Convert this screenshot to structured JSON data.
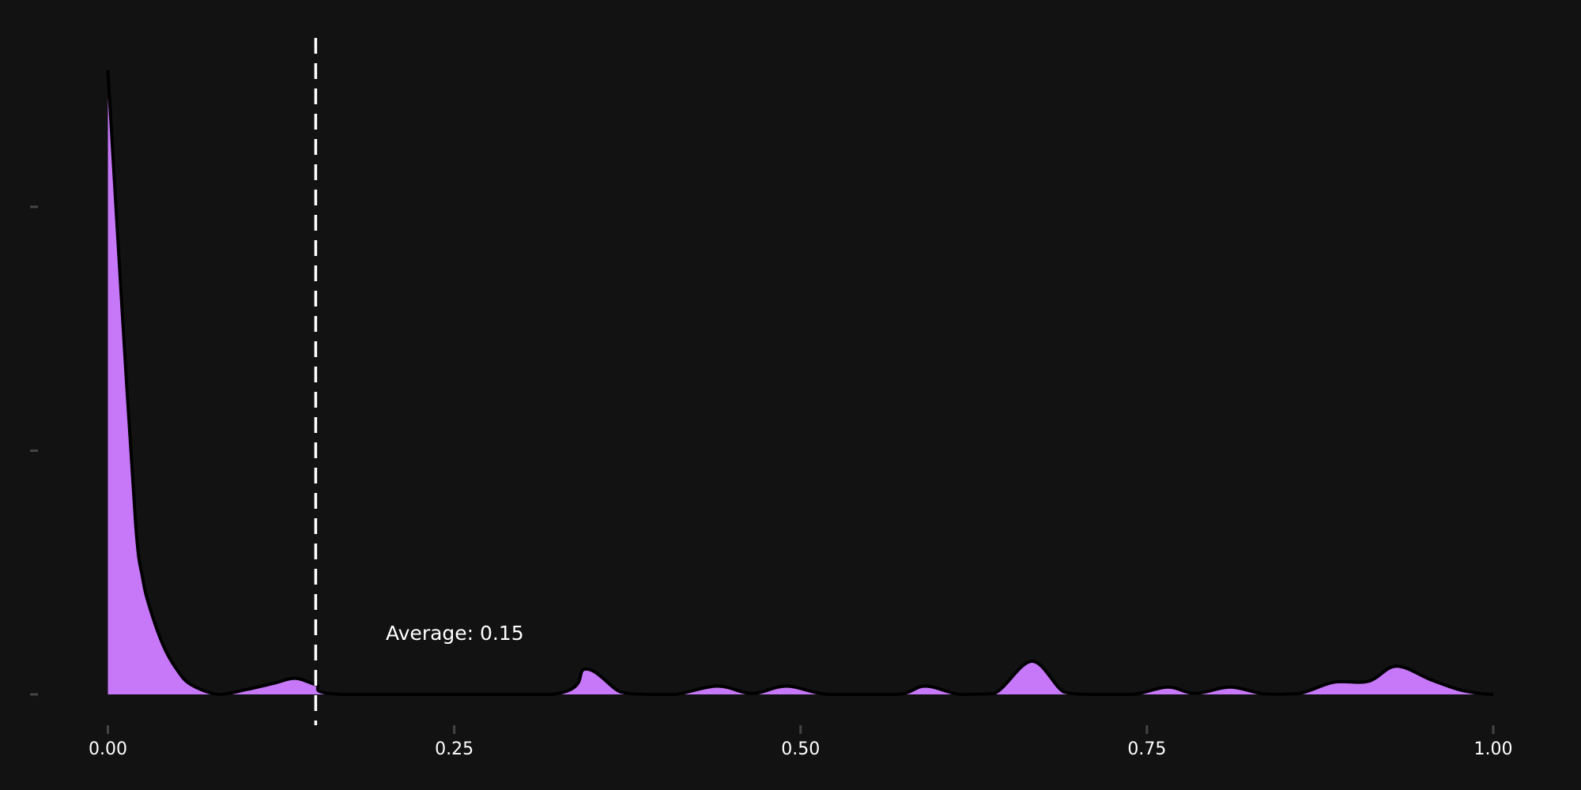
{
  "chart_data": {
    "type": "density",
    "x": [
      0,
      0.01,
      0.02,
      0.025,
      0.03,
      0.04,
      0.05,
      0.06,
      0.08,
      0.1,
      0.12,
      0.135,
      0.15,
      0.17,
      0.32,
      0.345,
      0.37,
      0.39,
      0.41,
      0.44,
      0.465,
      0.49,
      0.52,
      0.57,
      0.59,
      0.615,
      0.64,
      0.667,
      0.69,
      0.71,
      0.74,
      0.765,
      0.785,
      0.81,
      0.835,
      0.86,
      0.885,
      0.91,
      0.93,
      0.955,
      0.975,
      0.99,
      1.0
    ],
    "values": [
      12.8,
      8.0,
      3.5,
      2.4,
      1.8,
      1.0,
      0.5,
      0.2,
      0,
      0.1,
      0.23,
      0.33,
      0.2,
      0,
      0,
      0.52,
      0.05,
      0,
      0,
      0.17,
      0.02,
      0.17,
      0,
      0,
      0.17,
      0,
      0.02,
      0.68,
      0.05,
      0,
      0,
      0.15,
      0.02,
      0.15,
      0.01,
      0.02,
      0.25,
      0.27,
      0.58,
      0.3,
      0.1,
      0.02,
      0
    ],
    "color": "#c678f9",
    "xlim": [
      0,
      1
    ],
    "ylim": [
      0,
      14
    ],
    "xticks": [
      {
        "value": 0,
        "label": "0.00"
      },
      {
        "value": 0.25,
        "label": "0.25"
      },
      {
        "value": 0.5,
        "label": "0.50"
      },
      {
        "value": 0.75,
        "label": "0.75"
      },
      {
        "value": 1,
        "label": "1.00"
      }
    ],
    "yticks": [
      0,
      5,
      10
    ],
    "average": 0.15,
    "annotation": "Average: 0.15"
  }
}
